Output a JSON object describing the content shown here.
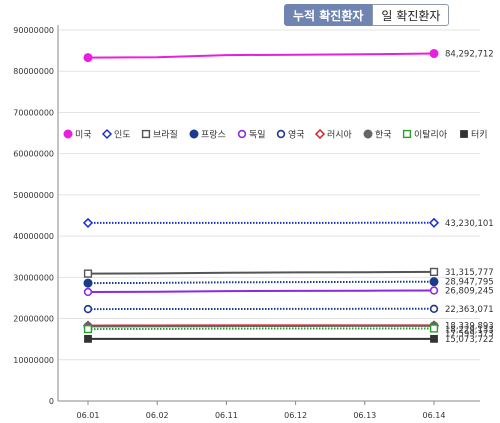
{
  "tabs": {
    "cumulative_label": "누적 확진환자",
    "daily_label": "일 확진환자"
  },
  "chart_data": {
    "type": "line",
    "title": "",
    "xlabel": "",
    "ylabel": "",
    "categories": [
      "06.01",
      "06.02",
      "06.11",
      "06.12",
      "06.13",
      "06.14"
    ],
    "ylim": [
      0,
      90000000
    ],
    "yticks": [
      "0",
      "10000000",
      "20000000",
      "30000000",
      "40000000",
      "50000000",
      "60000000",
      "70000000",
      "80000000",
      "90000000"
    ],
    "grid": true,
    "legend_position": "middle-left",
    "series": [
      {
        "name": "미국",
        "color": "#e91ee0",
        "marker": "filled-circle",
        "line": "solid",
        "values": [
          83300000,
          83400000,
          83900000,
          84000000,
          84100000,
          84292712
        ],
        "end_label": "84,292,712"
      },
      {
        "name": "인도",
        "color": "#1a2fd6",
        "marker": "diamond",
        "line": "dotted",
        "values": [
          43200000,
          43200000,
          43210000,
          43215000,
          43220000,
          43230101
        ],
        "end_label": "43,230,101"
      },
      {
        "name": "브라질",
        "color": "#555555",
        "marker": "square",
        "line": "solid",
        "values": [
          30900000,
          30950000,
          31100000,
          31200000,
          31250000,
          31315777
        ],
        "end_label": "31,315,777"
      },
      {
        "name": "프랑스",
        "color": "#1a3a8c",
        "marker": "filled-circle",
        "line": "dotted",
        "values": [
          28600000,
          28650000,
          28800000,
          28850000,
          28900000,
          28947795
        ],
        "end_label": "28,947,795"
      },
      {
        "name": "독일",
        "color": "#8a2be2",
        "marker": "circle",
        "line": "solid",
        "values": [
          26450000,
          26500000,
          26650000,
          26700000,
          26750000,
          26809245
        ],
        "end_label": "26,809,245"
      },
      {
        "name": "영국",
        "color": "#1a3a8c",
        "marker": "circle",
        "line": "dotted",
        "values": [
          22300000,
          22310000,
          22330000,
          22345000,
          22355000,
          22363071
        ],
        "end_label": "22,363,071"
      },
      {
        "name": "러시아",
        "color": "#d42020",
        "marker": "diamond",
        "line": "solid",
        "values": [
          18300000,
          18310000,
          18330000,
          18335000,
          18337000,
          18339893
        ],
        "end_label": "18,339,893"
      },
      {
        "name": "한국",
        "color": "#666666",
        "marker": "filled-circle",
        "line": "solid",
        "values": [
          18100000,
          18120000,
          18180000,
          18200000,
          18210000,
          18229133
        ],
        "end_label": "18,229,133"
      },
      {
        "name": "이탈리아",
        "color": "#2aa02a",
        "marker": "square",
        "line": "dotted",
        "values": [
          17450000,
          17480000,
          17560000,
          17580000,
          17590000,
          17599373
        ],
        "end_label": "17,599,373"
      },
      {
        "name": "터키",
        "color": "#333333",
        "marker": "filled-square",
        "line": "solid",
        "values": [
          15073722,
          15073722,
          15073722,
          15073722,
          15073722,
          15073722
        ],
        "end_label": "15,073,722"
      }
    ]
  }
}
